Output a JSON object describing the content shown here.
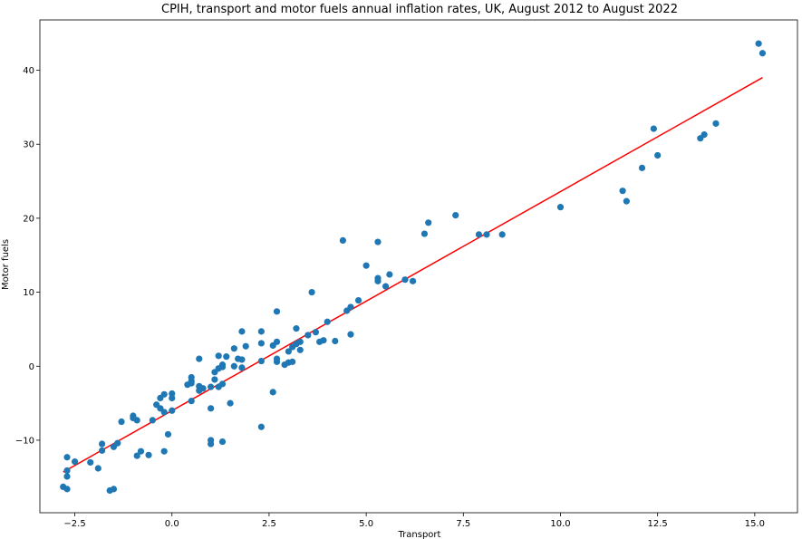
{
  "chart_data": {
    "type": "scatter",
    "title": "CPIH, transport and motor fuels annual inflation rates, UK, August 2012 to August 2022",
    "xlabel": "Transport",
    "ylabel": "Motor fuels",
    "xlim": [
      -3.4,
      16.1
    ],
    "ylim": [
      -19.8,
      46.8
    ],
    "xticks": [
      -2.5,
      0.0,
      2.5,
      5.0,
      7.5,
      10.0,
      12.5,
      15.0
    ],
    "xtick_labels": [
      "−2.5",
      "0.0",
      "2.5",
      "5.0",
      "7.5",
      "10.0",
      "12.5",
      "15.0"
    ],
    "yticks": [
      -10,
      0,
      10,
      20,
      30,
      40
    ],
    "ytick_labels": [
      "−10",
      "0",
      "10",
      "20",
      "30",
      "40"
    ],
    "grid": false,
    "series": [
      {
        "kind": "points",
        "color": "#1f77b4",
        "points": [
          [
            15.1,
            43.6
          ],
          [
            15.2,
            42.3
          ],
          [
            14.0,
            32.8
          ],
          [
            13.7,
            31.3
          ],
          [
            13.6,
            30.8
          ],
          [
            12.4,
            32.1
          ],
          [
            12.5,
            28.5
          ],
          [
            12.1,
            26.8
          ],
          [
            11.6,
            23.7
          ],
          [
            11.7,
            22.3
          ],
          [
            10.0,
            21.5
          ],
          [
            8.5,
            17.8
          ],
          [
            8.1,
            17.8
          ],
          [
            7.9,
            17.8
          ],
          [
            7.3,
            20.4
          ],
          [
            6.6,
            19.4
          ],
          [
            6.5,
            17.9
          ],
          [
            6.2,
            11.5
          ],
          [
            6.0,
            11.7
          ],
          [
            5.6,
            12.4
          ],
          [
            5.5,
            10.8
          ],
          [
            5.3,
            11.9
          ],
          [
            5.3,
            11.5
          ],
          [
            5.3,
            16.8
          ],
          [
            5.0,
            13.6
          ],
          [
            4.4,
            17.0
          ],
          [
            4.8,
            8.9
          ],
          [
            4.6,
            8.0
          ],
          [
            4.5,
            7.5
          ],
          [
            4.6,
            4.3
          ],
          [
            4.2,
            3.4
          ],
          [
            4.0,
            6.0
          ],
          [
            3.9,
            3.5
          ],
          [
            3.8,
            3.3
          ],
          [
            3.7,
            4.6
          ],
          [
            3.6,
            10.0
          ],
          [
            3.5,
            4.2
          ],
          [
            3.3,
            3.3
          ],
          [
            3.3,
            2.2
          ],
          [
            3.2,
            5.1
          ],
          [
            3.2,
            3.0
          ],
          [
            3.1,
            2.6
          ],
          [
            3.1,
            0.6
          ],
          [
            3.0,
            2.0
          ],
          [
            3.0,
            0.5
          ],
          [
            2.9,
            0.2
          ],
          [
            2.7,
            7.4
          ],
          [
            2.7,
            3.3
          ],
          [
            2.7,
            1.0
          ],
          [
            2.7,
            0.6
          ],
          [
            2.6,
            2.8
          ],
          [
            2.6,
            -3.5
          ],
          [
            2.3,
            4.7
          ],
          [
            2.3,
            3.1
          ],
          [
            2.3,
            0.7
          ],
          [
            2.3,
            -8.2
          ],
          [
            1.9,
            2.7
          ],
          [
            1.8,
            4.7
          ],
          [
            1.8,
            0.9
          ],
          [
            1.8,
            -0.2
          ],
          [
            1.7,
            1.0
          ],
          [
            1.6,
            2.4
          ],
          [
            1.6,
            0.0
          ],
          [
            1.5,
            -5.0
          ],
          [
            1.4,
            1.3
          ],
          [
            1.3,
            0.2
          ],
          [
            1.3,
            -0.1
          ],
          [
            1.3,
            -2.4
          ],
          [
            1.3,
            -10.2
          ],
          [
            1.2,
            1.4
          ],
          [
            1.2,
            -0.3
          ],
          [
            1.2,
            -2.8
          ],
          [
            1.1,
            -0.8
          ],
          [
            1.1,
            -1.8
          ],
          [
            1.0,
            -2.8
          ],
          [
            1.0,
            -5.7
          ],
          [
            1.0,
            -10.0
          ],
          [
            1.0,
            -10.5
          ],
          [
            0.8,
            -3.0
          ],
          [
            0.7,
            1.0
          ],
          [
            0.7,
            -2.7
          ],
          [
            0.7,
            -3.3
          ],
          [
            0.5,
            -1.5
          ],
          [
            0.5,
            -2.0
          ],
          [
            0.5,
            -2.3
          ],
          [
            0.5,
            -4.7
          ],
          [
            0.4,
            -2.5
          ],
          [
            0.0,
            -3.7
          ],
          [
            0.0,
            -4.3
          ],
          [
            0.0,
            -6.0
          ],
          [
            -0.1,
            -9.2
          ],
          [
            -0.2,
            -3.8
          ],
          [
            -0.2,
            -6.2
          ],
          [
            -0.2,
            -11.5
          ],
          [
            -0.3,
            -4.3
          ],
          [
            -0.3,
            -5.7
          ],
          [
            -0.4,
            -5.2
          ],
          [
            -0.5,
            -7.3
          ],
          [
            -0.6,
            -12.0
          ],
          [
            -0.8,
            -11.5
          ],
          [
            -0.9,
            -7.3
          ],
          [
            -0.9,
            -12.1
          ],
          [
            -1.0,
            -6.7
          ],
          [
            -1.0,
            -7.0
          ],
          [
            -1.3,
            -7.5
          ],
          [
            -1.4,
            -10.4
          ],
          [
            -1.5,
            -10.9
          ],
          [
            -1.5,
            -16.6
          ],
          [
            -1.6,
            -16.8
          ],
          [
            -1.8,
            -10.5
          ],
          [
            -1.8,
            -11.4
          ],
          [
            -1.9,
            -13.8
          ],
          [
            -2.1,
            -13.0
          ],
          [
            -2.5,
            -12.9
          ],
          [
            -2.7,
            -12.3
          ],
          [
            -2.7,
            -14.1
          ],
          [
            -2.7,
            -14.9
          ],
          [
            -2.8,
            -16.3
          ],
          [
            -2.7,
            -16.6
          ]
        ]
      },
      {
        "kind": "fit-line",
        "color": "#ff0000",
        "x": [
          -2.8,
          15.2
        ],
        "y": [
          -14.3,
          39.0
        ]
      }
    ]
  }
}
